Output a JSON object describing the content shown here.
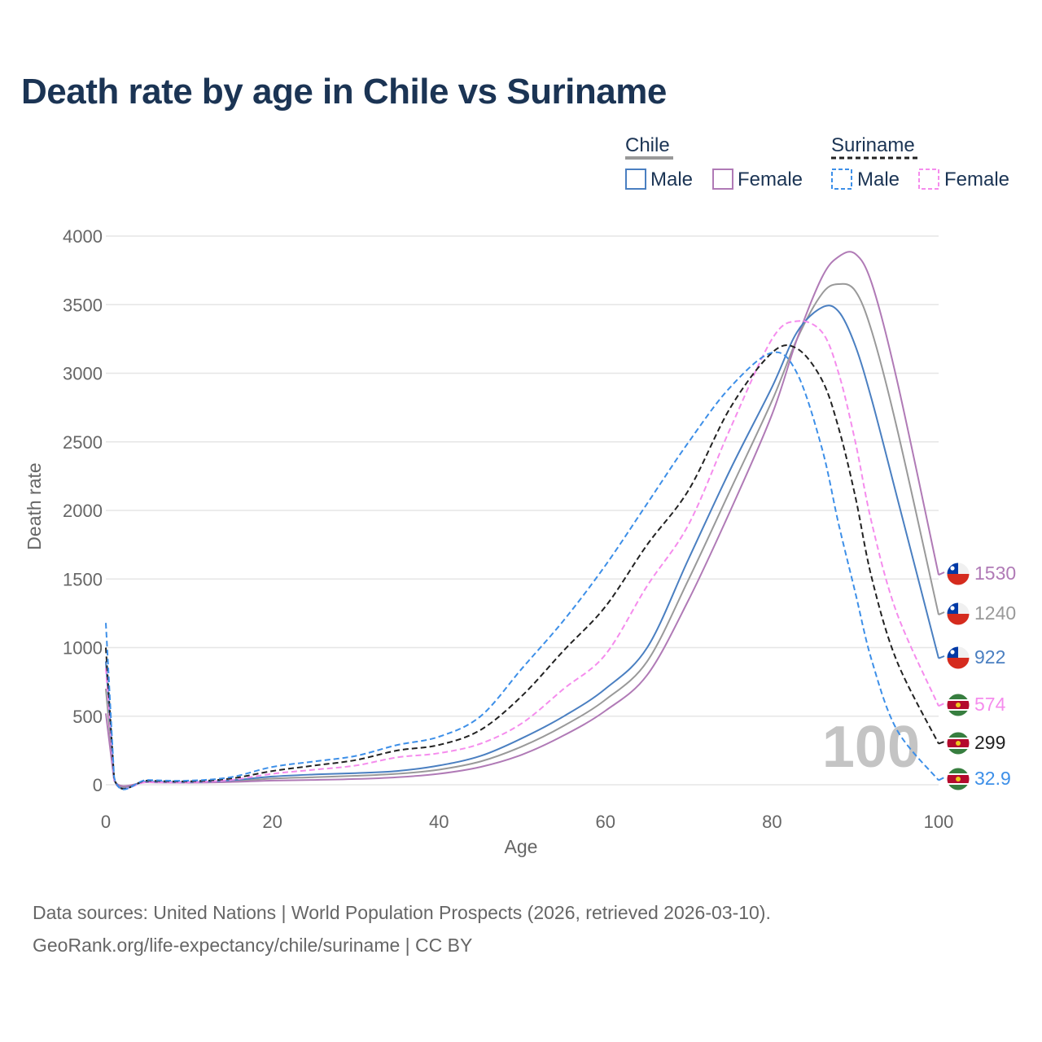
{
  "title": "Death rate by age in Chile vs Suriname",
  "source_line1": "Data sources: United Nations | World Population Prospects (2026, retrieved 2026-03-10).",
  "source_line2": "GeoRank.org/life-expectancy/chile/suriname | CC BY",
  "legend": {
    "group1": "Chile",
    "group2": "Suriname",
    "male_label": "Male",
    "female_label": "Female"
  },
  "watermark": "100",
  "colors": {
    "chile_male": "#4a7fc1",
    "chile_female": "#b07ab6",
    "chile_total": "#999999",
    "suriname_male": "#3d8fe8",
    "suriname_female": "#f58ced",
    "suriname_total": "#222222"
  },
  "chart_data": {
    "type": "line",
    "title": "Death rate by age in Chile vs Suriname",
    "xlabel": "Age",
    "ylabel": "Death rate",
    "xlim": [
      0,
      100
    ],
    "ylim": [
      0,
      4000
    ],
    "xticks": [
      0,
      20,
      40,
      60,
      80,
      100
    ],
    "yticks": [
      0,
      500,
      1000,
      1500,
      2000,
      2500,
      3000,
      3500,
      4000
    ],
    "x": [
      0,
      1,
      5,
      10,
      15,
      20,
      25,
      30,
      35,
      40,
      45,
      50,
      55,
      60,
      65,
      70,
      75,
      80,
      83,
      86,
      88,
      90,
      92,
      95,
      100
    ],
    "series": [
      {
        "name": "Chile Total",
        "country": "Chile",
        "style": "solid",
        "color_key": "chile_total",
        "end_label": "1240",
        "values": [
          700,
          35,
          22,
          18,
          25,
          45,
          55,
          65,
          80,
          110,
          170,
          280,
          430,
          620,
          900,
          1500,
          2150,
          2800,
          3250,
          3580,
          3650,
          3600,
          3300,
          2600,
          1240
        ]
      },
      {
        "name": "Chile Female",
        "country": "Chile",
        "style": "solid",
        "color_key": "chile_female",
        "end_label": "1530",
        "values": [
          520,
          30,
          18,
          15,
          20,
          30,
          35,
          42,
          55,
          80,
          130,
          220,
          360,
          540,
          800,
          1350,
          2000,
          2700,
          3250,
          3700,
          3850,
          3870,
          3650,
          2950,
          1530
        ]
      },
      {
        "name": "Chile Male",
        "country": "Chile",
        "style": "solid",
        "color_key": "chile_male",
        "end_label": "922",
        "values": [
          900,
          40,
          25,
          20,
          32,
          60,
          75,
          85,
          100,
          140,
          210,
          340,
          500,
          700,
          1000,
          1650,
          2300,
          2900,
          3300,
          3480,
          3450,
          3200,
          2800,
          2100,
          922
        ]
      },
      {
        "name": "Suriname Female",
        "country": "Suriname",
        "style": "dashed",
        "color_key": "suriname_female",
        "end_label": "574",
        "values": [
          850,
          35,
          20,
          18,
          35,
          80,
          110,
          140,
          200,
          230,
          300,
          450,
          700,
          950,
          1450,
          1900,
          2600,
          3250,
          3380,
          3300,
          3000,
          2500,
          1900,
          1250,
          574
        ]
      },
      {
        "name": "Suriname Total",
        "country": "Suriname",
        "style": "dashed",
        "color_key": "suriname_total",
        "end_label": "299",
        "values": [
          1000,
          45,
          30,
          25,
          45,
          100,
          140,
          180,
          250,
          290,
          400,
          650,
          980,
          1300,
          1750,
          2150,
          2750,
          3150,
          3180,
          2950,
          2600,
          2100,
          1500,
          900,
          299
        ]
      },
      {
        "name": "Suriname Male",
        "country": "Suriname",
        "style": "dashed",
        "color_key": "suriname_male",
        "end_label": "32.9",
        "values": [
          1180,
          55,
          35,
          30,
          55,
          130,
          170,
          210,
          290,
          350,
          500,
          850,
          1200,
          1600,
          2050,
          2500,
          2900,
          3150,
          3000,
          2450,
          1900,
          1400,
          900,
          400,
          32.9
        ]
      }
    ]
  }
}
